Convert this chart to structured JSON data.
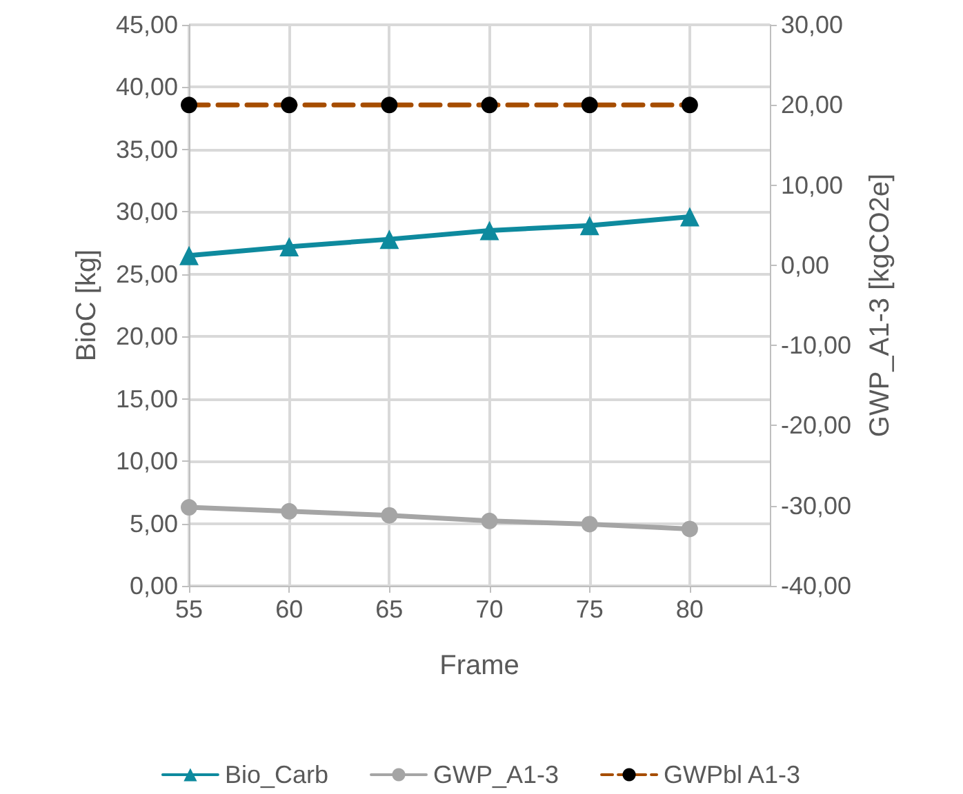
{
  "chart_data": {
    "type": "line",
    "xlabel": "Frame",
    "ylabel": "BioC [kg]",
    "y2label": "GWP_A1-3 [kgCO2e]",
    "x": [
      55,
      60,
      65,
      70,
      75,
      80
    ],
    "xlim": [
      55,
      84
    ],
    "xticks": [
      55,
      60,
      65,
      70,
      75,
      80
    ],
    "ylim": [
      0,
      45
    ],
    "yticks": [
      {
        "value": 0,
        "label": "0,00"
      },
      {
        "value": 5,
        "label": "5,00"
      },
      {
        "value": 10,
        "label": "10,00"
      },
      {
        "value": 15,
        "label": "15,00"
      },
      {
        "value": 20,
        "label": "20,00"
      },
      {
        "value": 25,
        "label": "25,00"
      },
      {
        "value": 30,
        "label": "30,00"
      },
      {
        "value": 35,
        "label": "35,00"
      },
      {
        "value": 40,
        "label": "40,00"
      },
      {
        "value": 45,
        "label": "45,00"
      }
    ],
    "y2lim": [
      -40,
      30
    ],
    "y2ticks": [
      {
        "value": -40,
        "label": "-40,00"
      },
      {
        "value": -30,
        "label": "-30,00"
      },
      {
        "value": -20,
        "label": "-20,00"
      },
      {
        "value": -10,
        "label": "-10,00"
      },
      {
        "value": 0,
        "label": "0,00"
      },
      {
        "value": 10,
        "label": "10,00"
      },
      {
        "value": 20,
        "label": "20,00"
      },
      {
        "value": 30,
        "label": "30,00"
      }
    ],
    "grid": true,
    "legend": "bottom",
    "series": [
      {
        "name": "Bio_Carb",
        "color": "#0e8a9e",
        "marker": "triangle",
        "line_style": "solid",
        "values": [
          26.5,
          27.2,
          27.8,
          28.5,
          28.9,
          29.6
        ]
      },
      {
        "name": "GWP_A1-3",
        "color": "#a5a5a5",
        "marker": "circle",
        "line_style": "solid",
        "axis": "y2",
        "values": [
          -30.2,
          -30.7,
          -31.2,
          -31.9,
          -32.3,
          -32.9
        ]
      },
      {
        "name": "GWPbl A1-3",
        "color": "#a64d00",
        "colors": [
          "#000000",
          "#000000",
          "#000000",
          "#000000",
          "#000000",
          "#000000"
        ],
        "marker": "circle",
        "line_style": "dashed",
        "axis": "y2",
        "values": [
          20,
          20,
          20,
          20,
          20,
          20
        ]
      }
    ]
  }
}
